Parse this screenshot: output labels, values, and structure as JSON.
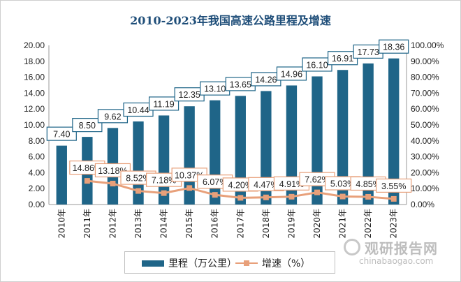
{
  "title": "2010-2023年我国高速公路里程及增速",
  "chart_data": {
    "type": "bar",
    "categories": [
      "2010年",
      "2011年",
      "2012年",
      "2013年",
      "2014年",
      "2015年",
      "2016年",
      "2017年",
      "2018年",
      "2019年",
      "2020年",
      "2021年",
      "2022年",
      "2023年"
    ],
    "series": [
      {
        "name": "里程（万公里）",
        "type": "bar",
        "axis": "left",
        "values": [
          7.4,
          8.5,
          9.62,
          10.44,
          11.19,
          12.35,
          13.1,
          13.65,
          14.26,
          14.96,
          16.1,
          16.91,
          17.73,
          18.36
        ],
        "labels": [
          "7.40",
          "8.50",
          "9.62",
          "10.44",
          "11.19",
          "12.35",
          "13.10",
          "13.65",
          "14.26",
          "14.96",
          "16.10",
          "16.91",
          "17.73",
          "18.36"
        ]
      },
      {
        "name": "增速（%）",
        "type": "line",
        "axis": "right",
        "values": [
          null,
          14.86,
          13.18,
          8.52,
          7.18,
          10.37,
          6.07,
          4.2,
          4.47,
          4.91,
          7.62,
          5.03,
          4.85,
          3.55
        ],
        "labels": [
          "",
          "14.86%",
          "13.18%",
          "8.52%",
          "7.18%",
          "10.37%",
          "6.07%",
          "4.20%",
          "4.47%",
          "4.91%",
          "7.62%",
          "5.03%",
          "4.85%",
          "3.55%"
        ]
      }
    ],
    "left_axis": {
      "min": 0,
      "max": 20,
      "step": 2,
      "ticks": [
        "0.00",
        "2.00",
        "4.00",
        "6.00",
        "8.00",
        "10.00",
        "12.00",
        "14.00",
        "16.00",
        "18.00",
        "20.00"
      ]
    },
    "right_axis": {
      "min": 0,
      "max": 100,
      "step": 10,
      "ticks": [
        "0.00%",
        "10.00%",
        "20.00%",
        "30.00%",
        "40.00%",
        "50.00%",
        "60.00%",
        "70.00%",
        "80.00%",
        "90.00%",
        "100.00%"
      ]
    },
    "grid": false,
    "legend_position": "bottom",
    "colors": {
      "bar": "#1f6588",
      "line": "#e8a07a",
      "label_border": "#1f6588",
      "line_label_border": "#e8a07a"
    }
  },
  "legend": {
    "bar_label": "里程（万公里）",
    "line_label": "增速（%）"
  },
  "watermark": {
    "cn": "观研报告网",
    "en": "chinabaogao.com"
  }
}
